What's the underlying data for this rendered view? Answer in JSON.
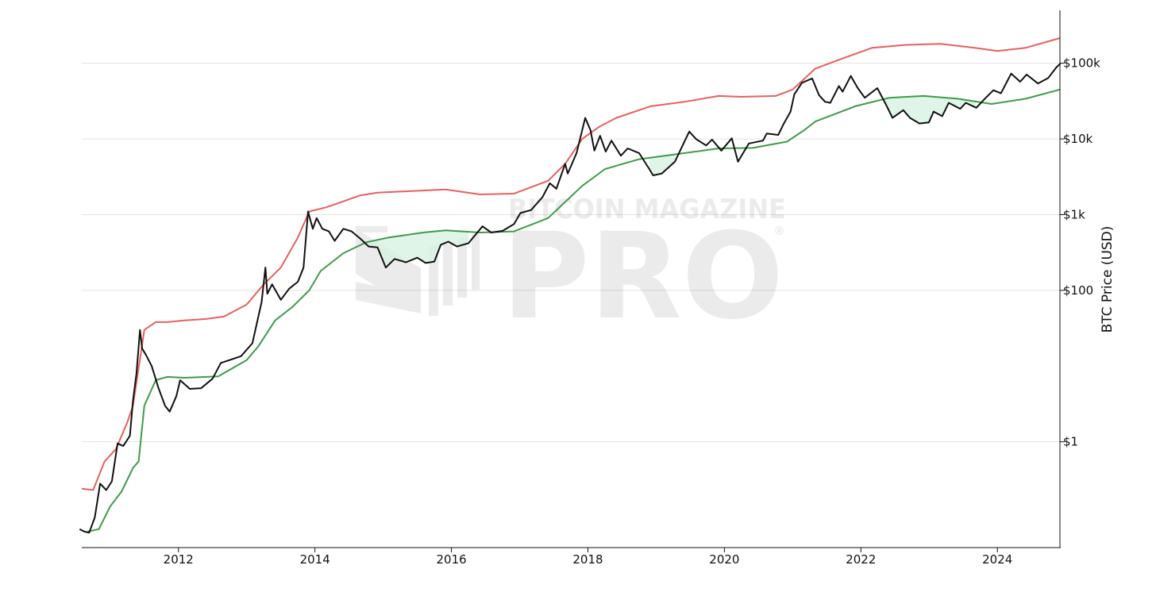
{
  "chart_data": {
    "type": "line",
    "title": "",
    "xlabel": "",
    "ylabel": "BTC Price (USD)",
    "y_scale": "log",
    "ylim": [
      0.04,
      500000
    ],
    "xlim": [
      "2010-08",
      "2024-12"
    ],
    "grid": "horizontal",
    "legend": "none",
    "x_ticks": [
      {
        "label": "2012",
        "value": "2012-01"
      },
      {
        "label": "2014",
        "value": "2014-01"
      },
      {
        "label": "2016",
        "value": "2016-01"
      },
      {
        "label": "2018",
        "value": "2018-01"
      },
      {
        "label": "2020",
        "value": "2020-01"
      },
      {
        "label": "2022",
        "value": "2022-01"
      },
      {
        "label": "2024",
        "value": "2024-01"
      }
    ],
    "y_ticks": [
      {
        "label": "$100k",
        "value": 100000
      },
      {
        "label": "$10k",
        "value": 10000
      },
      {
        "label": "$1k",
        "value": 1000
      },
      {
        "label": "$100",
        "value": 100
      },
      {
        "label": "$1",
        "value": 1
      }
    ],
    "series": [
      {
        "color": "#e8605e",
        "points": [
          [
            "2010-08",
            0.24
          ],
          [
            "2010-10",
            0.23
          ],
          [
            "2010-12",
            0.55
          ],
          [
            "2011-02",
            0.8
          ],
          [
            "2011-04",
            1.8
          ],
          [
            "2011-05",
            3.0
          ],
          [
            "2011-07",
            30
          ],
          [
            "2011-09",
            38
          ],
          [
            "2011-11",
            38
          ],
          [
            "2012-02",
            40
          ],
          [
            "2012-06",
            42
          ],
          [
            "2012-09",
            45
          ],
          [
            "2013-01",
            65
          ],
          [
            "2013-04",
            120
          ],
          [
            "2013-07",
            200
          ],
          [
            "2013-10",
            500
          ],
          [
            "2013-12",
            1100
          ],
          [
            "2014-03",
            1250
          ],
          [
            "2014-06",
            1500
          ],
          [
            "2014-09",
            1800
          ],
          [
            "2014-12",
            1950
          ],
          [
            "2015-06",
            2050
          ],
          [
            "2015-12",
            2150
          ],
          [
            "2016-06",
            1850
          ],
          [
            "2016-12",
            1900
          ],
          [
            "2017-06",
            2800
          ],
          [
            "2017-09",
            4700
          ],
          [
            "2017-12",
            10000
          ],
          [
            "2018-03",
            14500
          ],
          [
            "2018-06",
            19000
          ],
          [
            "2018-12",
            27000
          ],
          [
            "2019-06",
            31000
          ],
          [
            "2019-12",
            37000
          ],
          [
            "2020-04",
            36000
          ],
          [
            "2020-10",
            37000
          ],
          [
            "2021-01",
            45000
          ],
          [
            "2021-05",
            85000
          ],
          [
            "2021-09",
            110000
          ],
          [
            "2022-03",
            160000
          ],
          [
            "2022-09",
            175000
          ],
          [
            "2023-03",
            180000
          ],
          [
            "2023-09",
            160000
          ],
          [
            "2024-01",
            145000
          ],
          [
            "2024-06",
            160000
          ],
          [
            "2024-12",
            215000
          ]
        ]
      },
      {
        "color": "#3f9b4a",
        "points": [
          [
            "2010-09",
            0.065
          ],
          [
            "2010-11",
            0.07
          ],
          [
            "2011-01",
            0.14
          ],
          [
            "2011-03",
            0.22
          ],
          [
            "2011-05",
            0.45
          ],
          [
            "2011-06",
            0.55
          ],
          [
            "2011-07",
            3.0
          ],
          [
            "2011-09",
            6.5
          ],
          [
            "2011-11",
            7.2
          ],
          [
            "2012-02",
            7.0
          ],
          [
            "2012-08",
            7.3
          ],
          [
            "2013-01",
            12
          ],
          [
            "2013-03",
            18
          ],
          [
            "2013-06",
            40
          ],
          [
            "2013-09",
            60
          ],
          [
            "2013-12",
            100
          ],
          [
            "2014-02",
            180
          ],
          [
            "2014-06",
            310
          ],
          [
            "2014-10",
            430
          ],
          [
            "2015-02",
            500
          ],
          [
            "2015-08",
            580
          ],
          [
            "2015-12",
            620
          ],
          [
            "2016-06",
            580
          ],
          [
            "2016-12",
            600
          ],
          [
            "2017-06",
            900
          ],
          [
            "2017-12",
            2400
          ],
          [
            "2018-04",
            4000
          ],
          [
            "2018-10",
            5400
          ],
          [
            "2019-06",
            6500
          ],
          [
            "2019-12",
            7500
          ],
          [
            "2020-06",
            7600
          ],
          [
            "2020-12",
            9200
          ],
          [
            "2021-03",
            13000
          ],
          [
            "2021-05",
            17000
          ],
          [
            "2021-12",
            27000
          ],
          [
            "2022-06",
            35000
          ],
          [
            "2022-12",
            37000
          ],
          [
            "2023-06",
            34000
          ],
          [
            "2023-12",
            29000
          ],
          [
            "2024-06",
            34000
          ],
          [
            "2024-12",
            45000
          ]
        ]
      },
      {
        "color": "#111111",
        "points": [
          [
            "2010-07-20",
            0.07
          ],
          [
            "2010-08-15",
            0.065
          ],
          [
            "2010-09-10",
            0.063
          ],
          [
            "2010-10-10",
            0.1
          ],
          [
            "2010-11-08",
            0.28
          ],
          [
            "2010-12-10",
            0.23
          ],
          [
            "2011-01-10",
            0.3
          ],
          [
            "2011-02-10",
            0.95
          ],
          [
            "2011-03-10",
            0.88
          ],
          [
            "2011-04-15",
            1.2
          ],
          [
            "2011-05-01",
            3.5
          ],
          [
            "2011-05-20",
            8
          ],
          [
            "2011-06-08",
            30
          ],
          [
            "2011-06-20",
            17
          ],
          [
            "2011-07-10",
            14
          ],
          [
            "2011-08-10",
            10
          ],
          [
            "2011-09-15",
            5.2
          ],
          [
            "2011-10-20",
            3.0
          ],
          [
            "2011-11-15",
            2.5
          ],
          [
            "2011-12-20",
            4.0
          ],
          [
            "2012-01-10",
            6.5
          ],
          [
            "2012-03-01",
            5.0
          ],
          [
            "2012-05-01",
            5.1
          ],
          [
            "2012-07-01",
            6.8
          ],
          [
            "2012-08-15",
            11
          ],
          [
            "2012-10-01",
            12
          ],
          [
            "2012-12-01",
            13.5
          ],
          [
            "2013-02-01",
            20
          ],
          [
            "2013-03-20",
            70
          ],
          [
            "2013-04-10",
            200
          ],
          [
            "2013-04-20",
            90
          ],
          [
            "2013-05-15",
            120
          ],
          [
            "2013-07-01",
            75
          ],
          [
            "2013-08-15",
            105
          ],
          [
            "2013-10-01",
            130
          ],
          [
            "2013-11-01",
            200
          ],
          [
            "2013-11-25",
            1100
          ],
          [
            "2013-12-10",
            800
          ],
          [
            "2013-12-20",
            650
          ],
          [
            "2014-01-10",
            900
          ],
          [
            "2014-02-10",
            650
          ],
          [
            "2014-03-15",
            600
          ],
          [
            "2014-04-15",
            450
          ],
          [
            "2014-06-01",
            650
          ],
          [
            "2014-07-15",
            600
          ],
          [
            "2014-09-01",
            480
          ],
          [
            "2014-10-15",
            380
          ],
          [
            "2014-12-01",
            370
          ],
          [
            "2015-01-15",
            200
          ],
          [
            "2015-03-01",
            260
          ],
          [
            "2015-05-01",
            235
          ],
          [
            "2015-07-01",
            270
          ],
          [
            "2015-08-15",
            230
          ],
          [
            "2015-10-01",
            240
          ],
          [
            "2015-11-05",
            400
          ],
          [
            "2015-12-15",
            440
          ],
          [
            "2016-02-01",
            380
          ],
          [
            "2016-04-01",
            420
          ],
          [
            "2016-06-15",
            700
          ],
          [
            "2016-08-01",
            580
          ],
          [
            "2016-10-01",
            610
          ],
          [
            "2016-12-01",
            750
          ],
          [
            "2017-01-05",
            1050
          ],
          [
            "2017-03-01",
            1150
          ],
          [
            "2017-05-01",
            1700
          ],
          [
            "2017-06-10",
            2600
          ],
          [
            "2017-07-15",
            2200
          ],
          [
            "2017-09-01",
            4700
          ],
          [
            "2017-09-15",
            3500
          ],
          [
            "2017-11-01",
            6500
          ],
          [
            "2017-12-17",
            19000
          ],
          [
            "2018-01-15",
            13000
          ],
          [
            "2018-02-05",
            7000
          ],
          [
            "2018-03-05",
            11000
          ],
          [
            "2018-04-05",
            6800
          ],
          [
            "2018-05-05",
            9500
          ],
          [
            "2018-06-25",
            6000
          ],
          [
            "2018-08-01",
            7500
          ],
          [
            "2018-10-01",
            6500
          ],
          [
            "2018-11-25",
            4000
          ],
          [
            "2018-12-15",
            3300
          ],
          [
            "2019-02-01",
            3500
          ],
          [
            "2019-04-10",
            5000
          ],
          [
            "2019-06-26",
            12500
          ],
          [
            "2019-08-01",
            10000
          ],
          [
            "2019-09-25",
            8200
          ],
          [
            "2019-10-26",
            9800
          ],
          [
            "2019-12-15",
            7000
          ],
          [
            "2020-02-10",
            10200
          ],
          [
            "2020-03-13",
            5000
          ],
          [
            "2020-05-10",
            8700
          ],
          [
            "2020-07-25",
            9500
          ],
          [
            "2020-08-15",
            11800
          ],
          [
            "2020-10-15",
            11300
          ],
          [
            "2020-11-15",
            16000
          ],
          [
            "2020-12-20",
            23000
          ],
          [
            "2021-01-10",
            39000
          ],
          [
            "2021-02-20",
            55000
          ],
          [
            "2021-04-14",
            63000
          ],
          [
            "2021-05-20",
            38000
          ],
          [
            "2021-06-22",
            31000
          ],
          [
            "2021-07-20",
            30000
          ],
          [
            "2021-09-05",
            50000
          ],
          [
            "2021-09-25",
            42000
          ],
          [
            "2021-11-08",
            68000
          ],
          [
            "2021-12-15",
            47000
          ],
          [
            "2022-01-22",
            35000
          ],
          [
            "2022-03-28",
            47000
          ],
          [
            "2022-05-12",
            29000
          ],
          [
            "2022-06-18",
            19000
          ],
          [
            "2022-08-15",
            24000
          ],
          [
            "2022-09-20",
            19000
          ],
          [
            "2022-11-10",
            16000
          ],
          [
            "2022-12-30",
            16500
          ],
          [
            "2023-01-25",
            23000
          ],
          [
            "2023-03-10",
            20000
          ],
          [
            "2023-04-15",
            30000
          ],
          [
            "2023-06-15",
            25000
          ],
          [
            "2023-07-15",
            30000
          ],
          [
            "2023-09-10",
            25800
          ],
          [
            "2023-10-25",
            34000
          ],
          [
            "2023-12-10",
            44000
          ],
          [
            "2024-01-20",
            40000
          ],
          [
            "2024-03-14",
            73000
          ],
          [
            "2024-05-01",
            57000
          ],
          [
            "2024-06-05",
            71000
          ],
          [
            "2024-08-05",
            54000
          ],
          [
            "2024-09-30",
            64000
          ],
          [
            "2024-11-12",
            88000
          ],
          [
            "2024-12-05",
            100000
          ]
        ]
      }
    ]
  },
  "watermark": {
    "line1": "BITCOIN MAGAZINE",
    "line2": "PRO",
    "mark": "®"
  }
}
